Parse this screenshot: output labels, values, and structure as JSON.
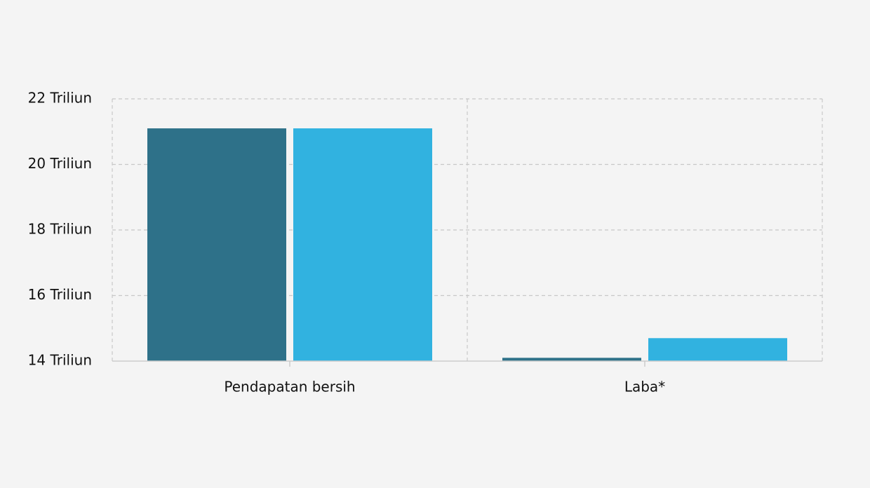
{
  "chart_data": {
    "type": "bar",
    "categories": [
      "Pendapatan bersih",
      "Laba*"
    ],
    "series": [
      {
        "color": "#2e7189",
        "values": [
          21.1,
          14.1
        ]
      },
      {
        "color": "#31b2e0",
        "values": [
          21.1,
          14.7
        ]
      }
    ],
    "ylim": [
      14,
      22
    ],
    "yticks": [
      {
        "value": 14,
        "label": "14 Triliun"
      },
      {
        "value": 16,
        "label": "16 Triliun"
      },
      {
        "value": 18,
        "label": "18 Triliun"
      },
      {
        "value": 20,
        "label": "20 Triliun"
      },
      {
        "value": 22,
        "label": "22 Triliun"
      }
    ],
    "grid": true
  }
}
